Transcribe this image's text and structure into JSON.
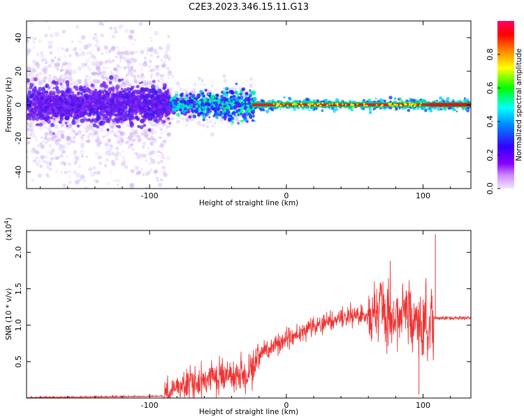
{
  "title": "C2E3.2023.346.15.11.G13",
  "colors": {
    "snr_line": "#ee3333",
    "spectro_scatter": "#7a1ff0",
    "trace": "#e41a1c",
    "axis": "#000000"
  },
  "chart_data": [
    {
      "type": "heatmap",
      "name": "spectrogram",
      "xlabel": "Height of straight line (km)",
      "ylabel": "Frequency (Hz)",
      "xlim": [
        -190,
        135
      ],
      "ylim": [
        -50,
        50
      ],
      "xticks": [
        -100,
        0,
        100
      ],
      "yticks": [
        -40,
        -20,
        0,
        20,
        40
      ],
      "colorbar": {
        "label": "Normalized spectral amplitude",
        "range": [
          0.0,
          1.0
        ],
        "ticks": [
          "0.0",
          "0.2",
          "0.4",
          "0.6",
          "0.8"
        ],
        "colormap": "rainbow"
      },
      "description_data": {
        "noise_region_x": [
          -190,
          -85
        ],
        "transition_region_x": [
          -85,
          -25
        ],
        "stable_region_x": [
          -25,
          135
        ],
        "center_frequency": 0
      }
    },
    {
      "type": "line",
      "name": "snr",
      "xlabel": "Height of straight line (km)",
      "ylabel": "SNR (10 * v/v)",
      "scale_note": "(x10",
      "scale_exp": "4",
      "xlim": [
        -190,
        135
      ],
      "ylim": [
        0,
        2.3
      ],
      "xticks": [
        -100,
        0,
        100
      ],
      "yticks": [
        0.5,
        1.0,
        1.5,
        2.0
      ],
      "ytick_labels": [
        "0.5",
        "1.0",
        "1.5",
        "2.0"
      ],
      "envelope": {
        "x": [
          -190,
          -90,
          -80,
          -70,
          -60,
          -50,
          -40,
          -30,
          -25,
          -20,
          -10,
          0,
          10,
          20,
          30,
          40,
          50,
          60,
          70,
          80,
          90,
          100,
          105,
          108,
          110,
          120,
          135
        ],
        "y": [
          0.0,
          0.02,
          0.15,
          0.2,
          0.25,
          0.28,
          0.3,
          0.3,
          0.45,
          0.6,
          0.7,
          0.8,
          0.9,
          1.0,
          1.05,
          1.1,
          1.12,
          1.15,
          1.15,
          1.12,
          1.08,
          1.05,
          1.0,
          1.1,
          1.1,
          1.1,
          1.1
        ]
      },
      "spikes": [
        {
          "x": 100,
          "y": 1.35
        },
        {
          "x": 109,
          "y": 2.25
        },
        {
          "x": 97,
          "y": 0.05
        },
        {
          "x": 68,
          "y": 1.45
        }
      ]
    }
  ]
}
